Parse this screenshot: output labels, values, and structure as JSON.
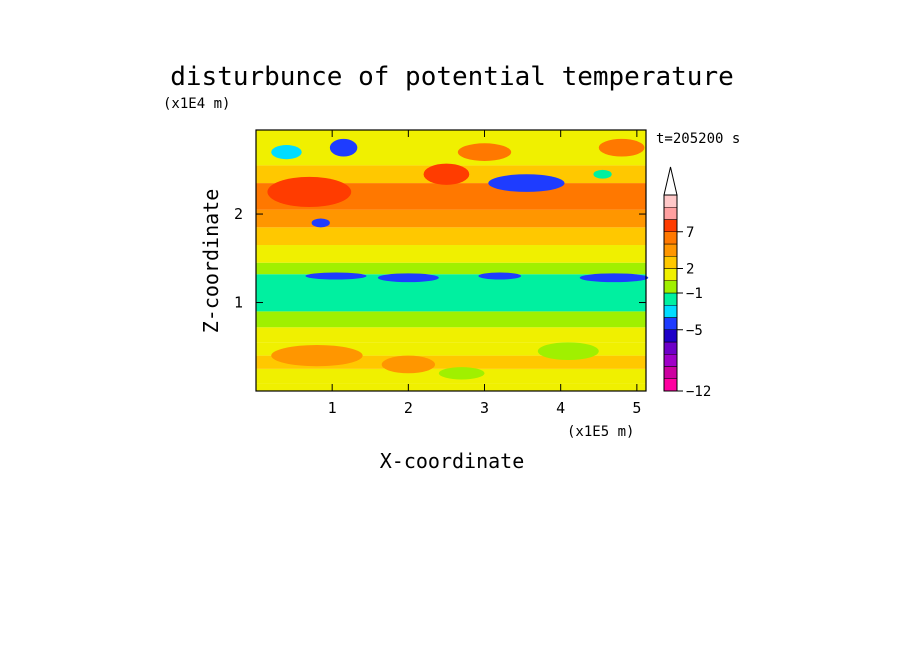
{
  "chart_data": {
    "type": "heatmap",
    "title": "disturbunce of potential temperature",
    "xlabel": "X-coordinate",
    "ylabel": "Z-coordinate",
    "x_unit": "(x1E5 m)",
    "y_unit": "(x1E4 m)",
    "time_label": "t=205200 s",
    "xlim": [
      0,
      5.12
    ],
    "ylim": [
      0,
      2.95
    ],
    "x_ticks": [
      {
        "value": 1,
        "label": "1"
      },
      {
        "value": 2,
        "label": "2"
      },
      {
        "value": 3,
        "label": "3"
      },
      {
        "value": 4,
        "label": "4"
      },
      {
        "value": 5,
        "label": "5"
      }
    ],
    "y_ticks": [
      {
        "value": 1,
        "label": "1"
      },
      {
        "value": 2,
        "label": "2"
      }
    ],
    "colorbar": {
      "extend_max": true,
      "colors": [
        "#ff00a0",
        "#cc00a0",
        "#a000c8",
        "#6e00c8",
        "#1e00c8",
        "#1e3cff",
        "#00dcff",
        "#00f0a0",
        "#a0f000",
        "#f0f000",
        "#ffc800",
        "#ff9600",
        "#ff7800",
        "#ff3c00",
        "#ffa0a0",
        "#ffc8c8"
      ],
      "labels": [
        {
          "level_index": 0,
          "text": "−12"
        },
        {
          "level_index": 5,
          "text": "−5"
        },
        {
          "level_index": 8,
          "text": "−1"
        },
        {
          "level_index": 10,
          "text": "2"
        },
        {
          "level_index": 13,
          "text": "7"
        }
      ]
    },
    "field_bands": [
      {
        "z_from": 0.0,
        "z_to": 0.08,
        "value": 0.5
      },
      {
        "z_from": 0.08,
        "z_to": 0.25,
        "value": 1.5
      },
      {
        "z_from": 0.25,
        "z_to": 0.4,
        "value": 2.5
      },
      {
        "z_from": 0.4,
        "z_to": 0.55,
        "value": 1.5
      },
      {
        "z_from": 0.55,
        "z_to": 0.72,
        "value": 0.0
      },
      {
        "z_from": 0.72,
        "z_to": 0.9,
        "value": -0.5
      },
      {
        "z_from": 0.9,
        "z_to": 1.32,
        "value": -1.5
      },
      {
        "z_from": 1.32,
        "z_to": 1.45,
        "value": -0.5
      },
      {
        "z_from": 1.45,
        "z_to": 1.65,
        "value": 1.5
      },
      {
        "z_from": 1.65,
        "z_to": 1.85,
        "value": 2.5
      },
      {
        "z_from": 1.85,
        "z_to": 2.05,
        "value": 3.5
      },
      {
        "z_from": 2.05,
        "z_to": 2.35,
        "value": 4.5
      },
      {
        "z_from": 2.35,
        "z_to": 2.55,
        "value": 2.5
      },
      {
        "z_from": 2.55,
        "z_to": 2.95,
        "value": 1.0
      }
    ],
    "field_features": [
      {
        "x": 0.7,
        "z": 2.25,
        "rx": 0.55,
        "rz": 0.17,
        "value": 5.0
      },
      {
        "x": 2.5,
        "z": 2.45,
        "rx": 0.3,
        "rz": 0.12,
        "value": 5.0
      },
      {
        "x": 3.0,
        "z": 2.7,
        "rx": 0.35,
        "rz": 0.1,
        "value": 4.0
      },
      {
        "x": 3.55,
        "z": 2.35,
        "rx": 0.5,
        "rz": 0.1,
        "value": -4.0
      },
      {
        "x": 4.8,
        "z": 2.75,
        "rx": 0.3,
        "rz": 0.1,
        "value": 4.0
      },
      {
        "x": 0.4,
        "z": 2.7,
        "rx": 0.2,
        "rz": 0.08,
        "value": -3.0
      },
      {
        "x": 1.15,
        "z": 2.75,
        "rx": 0.18,
        "rz": 0.1,
        "value": -4.0
      },
      {
        "x": 4.55,
        "z": 2.45,
        "rx": 0.12,
        "rz": 0.05,
        "value": -1.5
      },
      {
        "x": 0.85,
        "z": 1.9,
        "rx": 0.12,
        "rz": 0.05,
        "value": -3.5
      },
      {
        "x": 1.05,
        "z": 1.3,
        "rx": 0.4,
        "rz": 0.04,
        "value": -4.0
      },
      {
        "x": 2.0,
        "z": 1.28,
        "rx": 0.4,
        "rz": 0.05,
        "value": -4.0
      },
      {
        "x": 3.2,
        "z": 1.3,
        "rx": 0.28,
        "rz": 0.04,
        "value": -3.5
      },
      {
        "x": 4.7,
        "z": 1.28,
        "rx": 0.45,
        "rz": 0.05,
        "value": -4.0
      },
      {
        "x": 0.8,
        "z": 0.4,
        "rx": 0.6,
        "rz": 0.12,
        "value": 3.0
      },
      {
        "x": 2.0,
        "z": 0.3,
        "rx": 0.35,
        "rz": 0.1,
        "value": 3.5
      },
      {
        "x": 2.7,
        "z": 0.2,
        "rx": 0.3,
        "rz": 0.07,
        "value": -0.5
      },
      {
        "x": 4.1,
        "z": 0.45,
        "rx": 0.4,
        "rz": 0.1,
        "value": -0.5
      }
    ]
  }
}
